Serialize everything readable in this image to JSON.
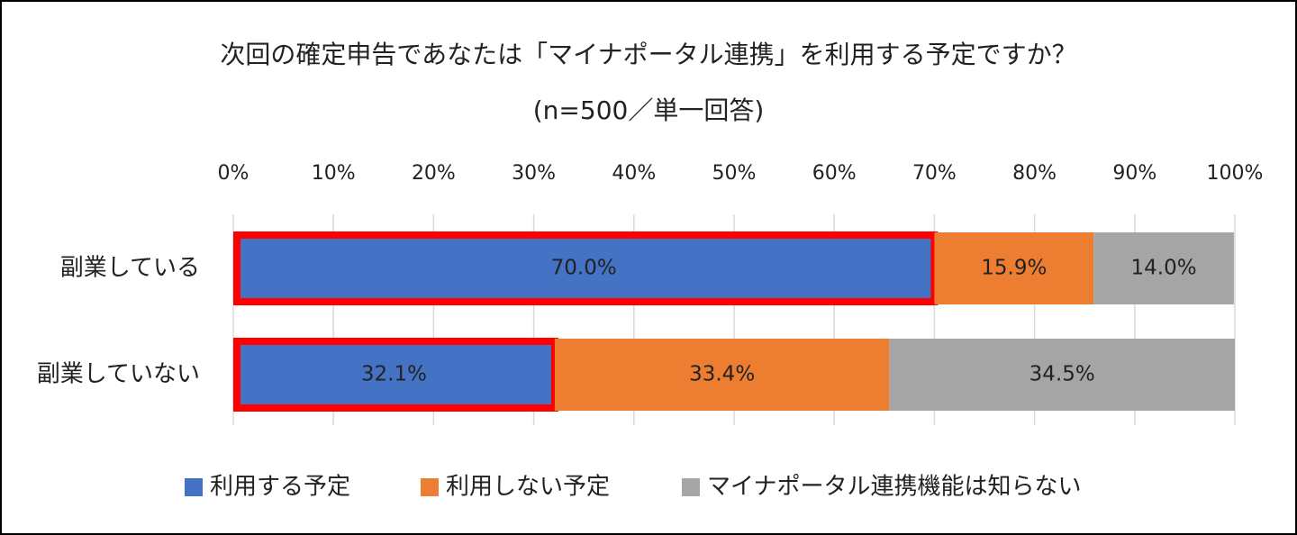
{
  "chart_data": {
    "type": "stacked_barh",
    "title": "次回の確定申告であなたは「マイナポータル連携」を利用する予定ですか？",
    "subtitle": "(n=500／単一回答)",
    "categories": [
      "副業している",
      "副業していない"
    ],
    "series": [
      {
        "name": "利用する予定",
        "color": "#4472c4",
        "values": [
          70.0,
          32.1
        ],
        "value_labels": [
          "70.0%",
          "32.1%"
        ]
      },
      {
        "name": "利用しない予定",
        "color": "#ed7d31",
        "values": [
          15.9,
          33.4
        ],
        "value_labels": [
          "15.9%",
          "33.4%"
        ]
      },
      {
        "name": "マイナポータル連携機能は知らない",
        "color": "#a5a5a5",
        "values": [
          14.0,
          34.5
        ],
        "value_labels": [
          "14.0%",
          "34.5%"
        ]
      }
    ],
    "xlim": [
      0,
      100
    ],
    "xticks": [
      {
        "value": 0,
        "label": "0%"
      },
      {
        "value": 10,
        "label": "10%"
      },
      {
        "value": 20,
        "label": "20%"
      },
      {
        "value": 30,
        "label": "30%"
      },
      {
        "value": 40,
        "label": "40%"
      },
      {
        "value": 50,
        "label": "50%"
      },
      {
        "value": 60,
        "label": "60%"
      },
      {
        "value": 70,
        "label": "70%"
      },
      {
        "value": 80,
        "label": "80%"
      },
      {
        "value": 90,
        "label": "90%"
      },
      {
        "value": 100,
        "label": "100%"
      }
    ],
    "grid": true,
    "legend": "bottom"
  }
}
